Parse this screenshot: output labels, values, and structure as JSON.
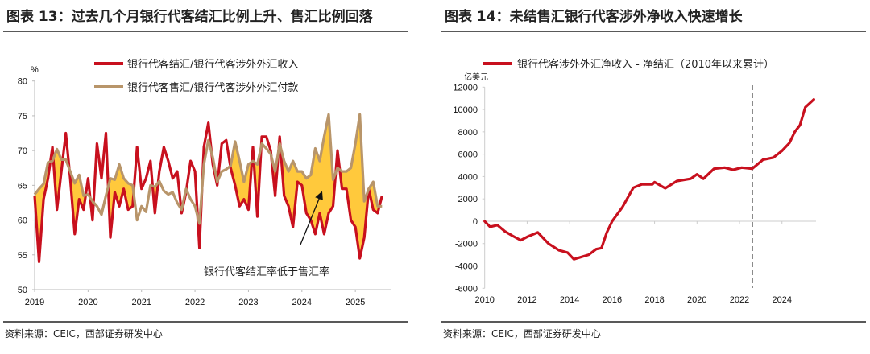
{
  "left": {
    "title": "图表 13：过去几个月银行代客结汇比例上升、售汇比例回落",
    "source": "资料来源：CEIC，西部证券研发中心"
  },
  "right": {
    "title": "图表 14：未结售汇银行代客涉外净收入快速增长",
    "source": "资料来源：CEIC，西部证券研发中心"
  },
  "chart_data": [
    {
      "type": "line",
      "ylabel": "%",
      "ylim": [
        50,
        80
      ],
      "yticks": [
        "80",
        "75",
        "70",
        "65",
        "60",
        "55",
        "50"
      ],
      "xticks": [
        "2019",
        "2020",
        "2021",
        "2022",
        "2023",
        "2024",
        "2025"
      ],
      "x_start": "2019-01",
      "frequency": "monthly",
      "fill_between": {
        "description": "银行代客结汇率低于售汇率",
        "color": "#FFC93C"
      },
      "annotation": "银行代客结汇率低于售汇率",
      "grid": false,
      "legend": "top",
      "series": [
        {
          "name": "银行代客结汇/银行代客涉外外汇收入",
          "color": "#C8101E",
          "values": [
            63.5,
            54,
            63,
            66,
            70.5,
            61.5,
            67,
            72.5,
            66,
            58,
            63,
            61.5,
            66,
            60,
            71,
            66,
            72.5,
            57.5,
            64,
            62,
            64.5,
            61.5,
            62,
            70.5,
            64.5,
            66,
            68.5,
            61,
            67,
            70.5,
            68.5,
            66,
            67,
            61,
            64,
            68.5,
            67,
            56,
            70.5,
            74,
            68,
            65,
            71,
            71.5,
            67.5,
            65,
            62,
            63,
            61.5,
            70.5,
            60.5,
            72,
            72,
            70,
            63.5,
            72,
            63.5,
            62,
            59,
            65.5,
            65,
            61,
            60,
            58,
            61,
            58,
            61,
            62,
            70,
            64.5,
            64.5,
            60,
            59,
            54.5,
            57.5,
            64.5,
            61.5,
            61,
            63.5
          ]
        },
        {
          "name": "银行代客售汇/银行代客涉外外汇付款",
          "color": "#B8956A",
          "values": [
            63.7,
            64.5,
            65.2,
            68.3,
            68.5,
            70.2,
            68.7,
            68.7,
            67,
            65.3,
            66.5,
            63.5,
            63.7,
            62.7,
            62,
            60.8,
            63.5,
            66,
            65.8,
            68,
            66,
            65.3,
            65,
            60,
            62,
            61.2,
            65,
            64.8,
            65.6,
            64.2,
            63.7,
            64,
            62.5,
            61.5,
            64.5,
            63,
            62,
            59.5,
            68,
            71.5,
            69,
            65.5,
            67,
            67.3,
            67.8,
            71.3,
            68.5,
            65.5,
            68,
            68.5,
            68,
            71,
            70.3,
            69.5,
            67,
            71,
            68.5,
            67,
            68.5,
            67,
            67,
            66,
            66.5,
            70.3,
            68.5,
            72,
            75.2,
            65.8,
            67.5,
            67,
            67,
            67.5,
            71,
            75.2,
            62.7,
            64.5,
            65.5,
            62,
            62
          ]
        }
      ]
    },
    {
      "type": "line",
      "ylabel": "亿美元",
      "ylim": [
        -6000,
        12000
      ],
      "yticks": [
        "12000",
        "10000",
        "8000",
        "6000",
        "4000",
        "2000",
        "0",
        "-2000",
        "-4000",
        "-6000"
      ],
      "xticks": [
        "2010",
        "2012",
        "2014",
        "2016",
        "2018",
        "2020",
        "2022",
        "2024"
      ],
      "xlim": [
        2010,
        2025.7
      ],
      "vertical_dashed_line_at": 2022.6,
      "grid": false,
      "legend": "top",
      "series": [
        {
          "name": "银行代客涉外外汇净收入 - 净结汇（2010年以来累计）",
          "color": "#C8101E",
          "x": [
            2010.0,
            2010.25,
            2010.6,
            2010.95,
            2011.3,
            2011.7,
            2012.0,
            2012.5,
            2013.0,
            2013.5,
            2013.9,
            2014.2,
            2014.9,
            2015.25,
            2015.5,
            2015.75,
            2016.0,
            2016.5,
            2017.0,
            2017.4,
            2017.9,
            2018.0,
            2018.5,
            2019.05,
            2019.7,
            2020.0,
            2020.3,
            2020.8,
            2021.3,
            2021.7,
            2022.1,
            2022.6,
            2023.1,
            2023.6,
            2024.0,
            2024.35,
            2024.6,
            2024.85,
            2025.1,
            2025.5
          ],
          "values": [
            0,
            -500,
            -350,
            -900,
            -1300,
            -1700,
            -1400,
            -1000,
            -2000,
            -2600,
            -2800,
            -3400,
            -3000,
            -2500,
            -2400,
            -1000,
            0,
            1300,
            3000,
            3300,
            3300,
            3500,
            2950,
            3600,
            3800,
            4200,
            3800,
            4700,
            4800,
            4600,
            4800,
            4700,
            5500,
            5700,
            6300,
            7000,
            8000,
            8600,
            10200,
            10900
          ]
        }
      ]
    }
  ]
}
